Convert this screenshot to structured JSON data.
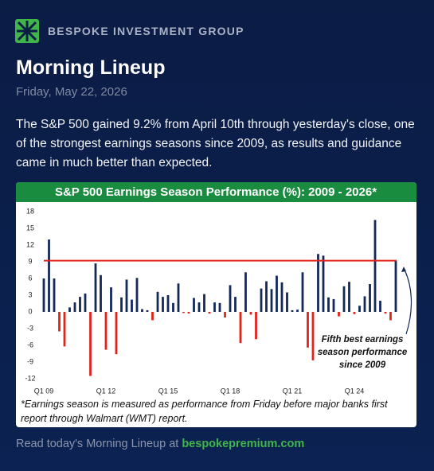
{
  "header": {
    "brand": "BESPOKE INVESTMENT GROUP",
    "title": "Morning Lineup",
    "date": "Friday, May 22, 2026"
  },
  "body": "The S&P 500 gained 9.2% from April 10th through yesterday's close, one of the strongest earnings seasons since 2009, as results and guidance came in much better than expected.",
  "chart_data": {
    "type": "bar",
    "title": "S&P 500 Earnings Season Performance (%): 2009 - 2026*",
    "categories": [
      "Q1 09",
      null,
      null,
      null,
      null,
      null,
      null,
      null,
      null,
      null,
      null,
      null,
      "Q1 12",
      null,
      null,
      null,
      null,
      null,
      null,
      null,
      null,
      null,
      null,
      null,
      "Q1 15",
      null,
      null,
      null,
      null,
      null,
      null,
      null,
      null,
      null,
      null,
      null,
      "Q1 18",
      null,
      null,
      null,
      null,
      null,
      null,
      null,
      null,
      null,
      null,
      null,
      "Q1 21",
      null,
      null,
      null,
      null,
      null,
      null,
      null,
      null,
      null,
      null,
      null,
      "Q1 24",
      null,
      null,
      null,
      null,
      null,
      null,
      null,
      null
    ],
    "values": [
      6,
      13,
      6,
      -3.5,
      -6.2,
      0.8,
      1.7,
      2.7,
      3.3,
      -11.5,
      8.7,
      6.6,
      -6.8,
      4.4,
      -7.6,
      2.6,
      5.8,
      2.2,
      6.1,
      0.5,
      0.3,
      -1.5,
      3.6,
      2.7,
      3,
      1.6,
      5.1,
      -0.2,
      -0.3,
      2.5,
      1.7,
      3.2,
      -0.3,
      1.7,
      1.6,
      -1,
      4.8,
      2.7,
      -5.6,
      7.1,
      -0.5,
      -4.9,
      4.2,
      5.5,
      4.1,
      6.5,
      5.3,
      3.5,
      0.3,
      0.4,
      7.1,
      -6.4,
      -8.7,
      10.4,
      10.1,
      2.6,
      2.3,
      -0.8,
      4.6,
      5.4,
      -0.4,
      1.1,
      2.8,
      5,
      16.5,
      2,
      -0.3,
      -1.5,
      9.2
    ],
    "positive_color": "#14285a",
    "negative_color": "#e2231a",
    "reference_line": 9.2,
    "reference_color": "#e2231a",
    "ylim": [
      -13,
      19.5
    ],
    "yticks": [
      18,
      15,
      12,
      9,
      6,
      3,
      0,
      -3,
      -6,
      -9,
      -12
    ],
    "annotation": [
      "Fifth best earnings",
      "season performance",
      "since 2009"
    ],
    "footnote": "*Earnings season is measured as performance from Friday before major banks first report through Walmart (WMT) report."
  },
  "footer": {
    "text": "Read today's Morning Lineup at",
    "link": "bespokepremium.com"
  }
}
